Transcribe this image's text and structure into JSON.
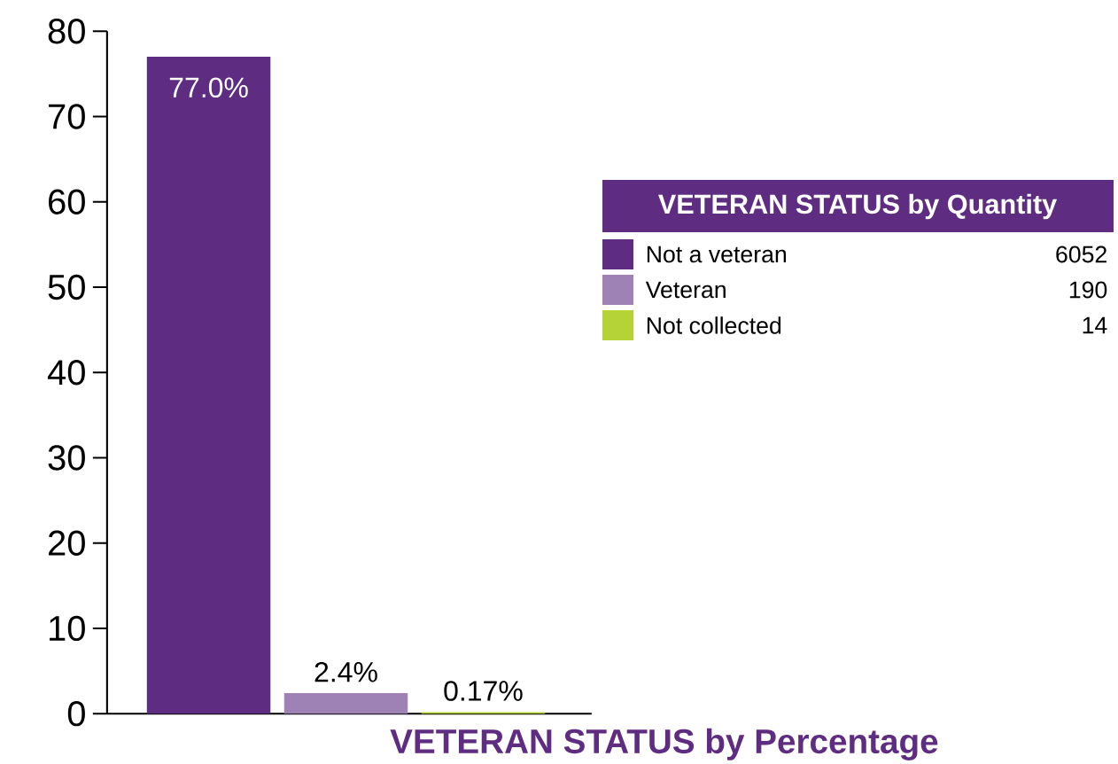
{
  "chart_data": {
    "type": "bar",
    "xlabel": "VETERAN STATUS by Percentage",
    "legend_title": "VETERAN STATUS by Quantity",
    "categories": [
      null,
      null,
      null
    ],
    "series": [
      {
        "name": "Not a veteran",
        "color": "#5e2d82",
        "values": [
          77.0,
          null,
          null
        ],
        "value_labels": [
          "77.0%",
          null,
          null
        ]
      },
      {
        "name": "Veteran",
        "color": "#9e82b6",
        "values": [
          null,
          2.4,
          null
        ],
        "value_labels": [
          null,
          "2.4%",
          null
        ]
      },
      {
        "name": "Not collected",
        "color": "#b5d334",
        "values": [
          null,
          null,
          0.17
        ],
        "value_labels": [
          null,
          null,
          "0.17%"
        ]
      }
    ],
    "annotations": [
      "6052",
      "190",
      "14"
    ],
    "ylim": [
      0,
      80
    ],
    "yticks": [
      0,
      10,
      20,
      30,
      40,
      50,
      60,
      70,
      80
    ],
    "grid": false,
    "legend": "right"
  }
}
